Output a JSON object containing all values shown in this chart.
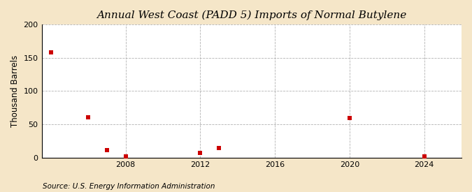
{
  "title": "Annual West Coast (PADD 5) Imports of Normal Butylene",
  "ylabel": "Thousand Barrels",
  "source": "Source: U.S. Energy Information Administration",
  "background_color": "#f5e6c8",
  "plot_background_color": "#ffffff",
  "marker_color": "#cc0000",
  "marker": "s",
  "marker_size": 5,
  "xlim": [
    2003.5,
    2026
  ],
  "ylim": [
    0,
    200
  ],
  "yticks": [
    0,
    50,
    100,
    150,
    200
  ],
  "xticks": [
    2008,
    2012,
    2016,
    2020,
    2024
  ],
  "grid_color": "#aaaaaa",
  "data_x": [
    2004,
    2006,
    2007,
    2008,
    2012,
    2013,
    2020,
    2024
  ],
  "data_y": [
    158,
    61,
    11,
    2,
    7,
    15,
    60,
    2
  ],
  "title_fontsize": 11,
  "axis_fontsize": 8.5,
  "tick_fontsize": 8,
  "source_fontsize": 7.5
}
